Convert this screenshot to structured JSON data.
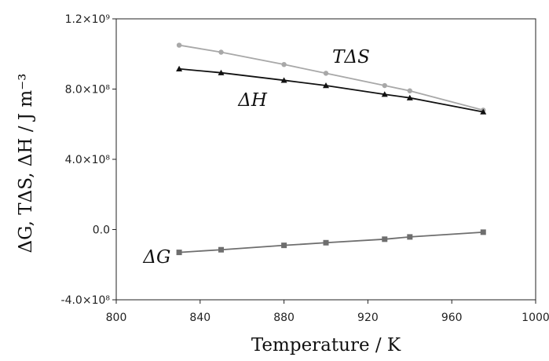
{
  "chart_data": {
    "type": "line",
    "xlabel": "Temperature / K",
    "ylabel": "ΔG,  TΔS,  ΔH / J m⁻³",
    "xlim": [
      800,
      1000
    ],
    "ylim": [
      -400000000,
      1200000000
    ],
    "x_ticks": [
      800,
      840,
      880,
      920,
      960,
      1000
    ],
    "x_tick_labels": [
      "800",
      "840",
      "880",
      "920",
      "960",
      "1000"
    ],
    "y_ticks": [
      -400000000,
      0,
      400000000,
      800000000,
      1200000000
    ],
    "y_tick_labels": [
      "-4.0×10⁸",
      "0.0",
      "4.0×10⁸",
      "8.0×10⁸",
      "1.2×10⁹"
    ],
    "grid": false,
    "legend": "none",
    "series": [
      {
        "name": "TΔS",
        "marker": "circle",
        "color": "#a8a8a8",
        "x": [
          830,
          850,
          880,
          900,
          928,
          940,
          975
        ],
        "y": [
          1050000000,
          1010000000,
          940000000,
          890000000,
          820000000,
          790000000,
          680000000
        ]
      },
      {
        "name": "ΔH",
        "marker": "triangle",
        "color": "#111111",
        "x": [
          830,
          850,
          880,
          900,
          928,
          940,
          975
        ],
        "y": [
          915000000,
          893000000,
          850000000,
          820000000,
          770000000,
          750000000,
          670000000
        ]
      },
      {
        "name": "ΔG",
        "marker": "square",
        "color": "#6e6e6e",
        "x": [
          830,
          850,
          880,
          900,
          928,
          940,
          975
        ],
        "y": [
          -130000000,
          -115000000,
          -90000000,
          -75000000,
          -55000000,
          -42000000,
          -15000000
        ]
      }
    ]
  }
}
